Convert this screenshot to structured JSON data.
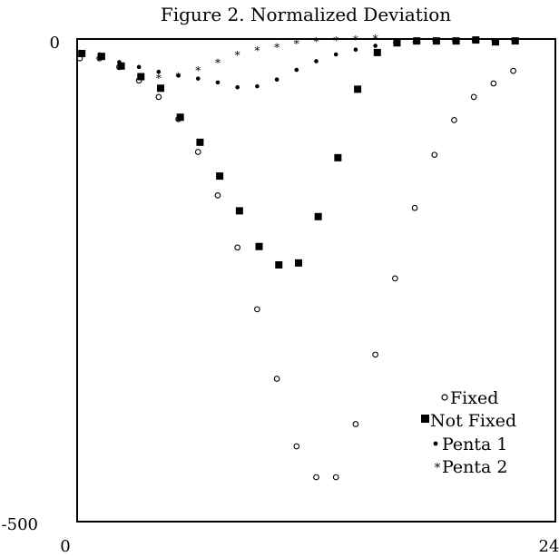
{
  "chart_data": {
    "type": "scatter",
    "title": "Figure 2. Normalized Deviation",
    "xlabel": "",
    "ylabel": "",
    "xlim": [
      0,
      24
    ],
    "ylim": [
      -500,
      0
    ],
    "x_tick_labels": [
      "0",
      "24"
    ],
    "y_tick_labels": [
      "0",
      "-500"
    ],
    "grid": false,
    "legend_position": "bottom-right",
    "series": [
      {
        "name": "Fixed",
        "marker": "open-circle",
        "points": [
          [
            0.0,
            -20
          ],
          [
            1.0,
            -20
          ],
          [
            2.0,
            -29
          ],
          [
            3.0,
            -43
          ],
          [
            4.0,
            -60
          ],
          [
            5.0,
            -83
          ],
          [
            6.0,
            -117
          ],
          [
            7.0,
            -162
          ],
          [
            8.0,
            -216
          ],
          [
            9.0,
            -280
          ],
          [
            10.0,
            -352
          ],
          [
            11.0,
            -422
          ],
          [
            12.0,
            -454
          ],
          [
            13.0,
            -454
          ],
          [
            14.0,
            -399
          ],
          [
            15.0,
            -327
          ],
          [
            16.0,
            -248
          ],
          [
            17.0,
            -175
          ],
          [
            18.0,
            -120
          ],
          [
            19.0,
            -84
          ],
          [
            20.0,
            -60
          ],
          [
            21.0,
            -46
          ],
          [
            22.0,
            -33
          ]
        ]
      },
      {
        "name": "Not Fixed",
        "marker": "filled-square",
        "points": [
          [
            0.1,
            -15
          ],
          [
            1.1,
            -18
          ],
          [
            2.1,
            -28
          ],
          [
            3.1,
            -39
          ],
          [
            4.1,
            -51
          ],
          [
            5.1,
            -81
          ],
          [
            6.1,
            -107
          ],
          [
            7.1,
            -142
          ],
          [
            8.1,
            -178
          ],
          [
            9.1,
            -215
          ],
          [
            10.1,
            -234
          ],
          [
            11.1,
            -232
          ],
          [
            12.1,
            -184
          ],
          [
            13.1,
            -123
          ],
          [
            14.1,
            -52
          ],
          [
            15.1,
            -14
          ],
          [
            16.1,
            -4
          ],
          [
            17.1,
            -2
          ],
          [
            18.1,
            -2
          ],
          [
            19.1,
            -2
          ],
          [
            20.1,
            -1
          ],
          [
            21.1,
            -3
          ],
          [
            22.1,
            -2
          ]
        ]
      },
      {
        "name": "Penta 1",
        "marker": "small-dot",
        "points": [
          [
            1.0,
            -16
          ],
          [
            2.0,
            -24
          ],
          [
            3.0,
            -29
          ],
          [
            4.0,
            -34
          ],
          [
            5.0,
            -38
          ],
          [
            6.0,
            -41
          ],
          [
            7.0,
            -45
          ],
          [
            8.0,
            -50
          ],
          [
            9.0,
            -49
          ],
          [
            10.0,
            -42
          ],
          [
            11.0,
            -32
          ],
          [
            12.0,
            -23
          ],
          [
            13.0,
            -16
          ],
          [
            14.0,
            -11
          ],
          [
            15.0,
            -7
          ],
          [
            16.0,
            -4
          ],
          [
            17.0,
            -3
          ],
          [
            18.0,
            -2
          ],
          [
            19.0,
            -2
          ],
          [
            20.0,
            -2
          ],
          [
            21.0,
            -2
          ],
          [
            22.0,
            -1
          ]
        ]
      },
      {
        "name": "Penta 2",
        "marker": "asterisk",
        "points": [
          [
            4.0,
            -41
          ],
          [
            5.0,
            -39
          ],
          [
            6.0,
            -33
          ],
          [
            7.0,
            -25
          ],
          [
            8.0,
            -17
          ],
          [
            9.0,
            -12
          ],
          [
            10.0,
            -9
          ],
          [
            11.0,
            -5
          ],
          [
            12.0,
            -3
          ],
          [
            13.0,
            -2
          ],
          [
            14.0,
            -1
          ],
          [
            15.0,
            0
          ]
        ]
      }
    ]
  }
}
